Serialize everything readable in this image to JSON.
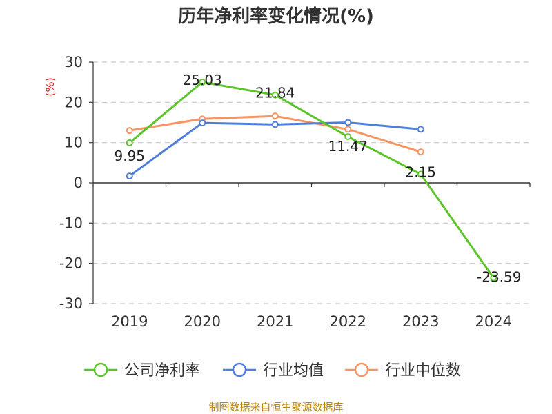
{
  "chart_data": {
    "type": "line",
    "title": "历年净利率变化情况(%)",
    "ylabel": "(%)",
    "categories": [
      "2019",
      "2020",
      "2021",
      "2022",
      "2023",
      "2024"
    ],
    "ylim": [
      -30,
      30
    ],
    "yticks": [
      -30,
      -20,
      -10,
      0,
      10,
      20,
      30
    ],
    "grid": true,
    "legend_position": "bottom",
    "series": [
      {
        "name": "公司净利率",
        "color": "#5cc52b",
        "values": [
          9.95,
          25.03,
          21.84,
          11.47,
          2.15,
          -23.59
        ],
        "labels": [
          "9.95",
          "25.03",
          "21.84",
          "11.47",
          "2.15",
          "-23.59"
        ]
      },
      {
        "name": "行业均值",
        "color": "#4f7fdb",
        "values": [
          1.7,
          14.9,
          14.5,
          15.0,
          13.3,
          null
        ]
      },
      {
        "name": "行业中位数",
        "color": "#f79463",
        "values": [
          13.0,
          15.9,
          16.6,
          13.3,
          7.7,
          null
        ]
      }
    ]
  },
  "source": "制图数据来自恒生聚源数据库"
}
